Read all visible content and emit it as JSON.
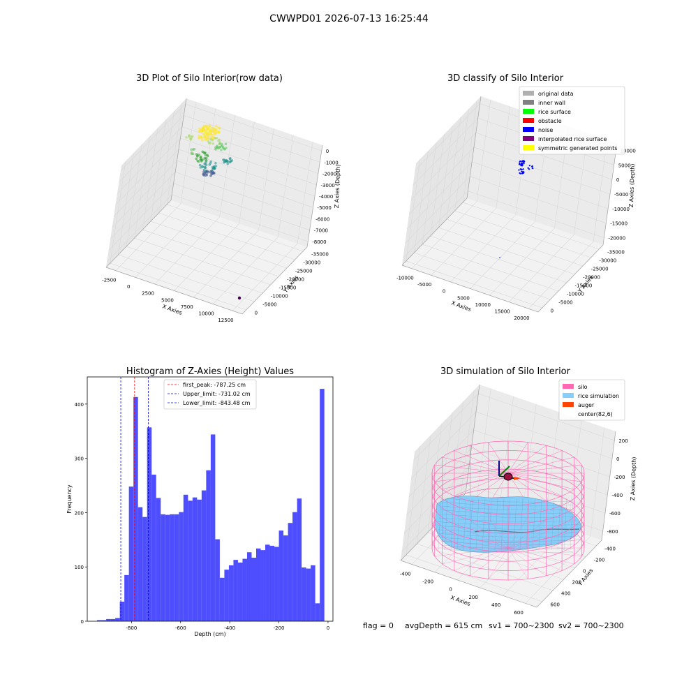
{
  "suptitle": "CWWPD01 2026-07-13 16:25:44",
  "colors": {
    "hist": "#4a4aff",
    "silo": "#ff69b4",
    "rice": "#87cefa",
    "auger": "#ff4500",
    "noise": "#0000ff",
    "pane": "#f2f2f2",
    "grid": "#d8d8d8"
  },
  "chart_data": [
    {
      "type": "scatter",
      "title": "3D Plot of Silo Interior(row data)",
      "xlabel": "X Axies",
      "ylabel": "Y Axies",
      "zlabel": "Z Axies (Depth)",
      "x_ticks": [
        "-2500",
        "0",
        "2500",
        "5000",
        "7500",
        "10000",
        "12500"
      ],
      "y_ticks": [
        "0",
        "-5000",
        "-10000",
        "-15000",
        "-20000",
        "-25000",
        "-30000",
        "-35000"
      ],
      "z_ticks": [
        "0",
        "-1000",
        "-2000",
        "-3000",
        "-4000",
        "-5000",
        "-6000",
        "-7000",
        "-8000"
      ],
      "colormap": "viridis"
    },
    {
      "type": "scatter",
      "title": "3D classify of Silo Interior",
      "xlabel": "X Axies",
      "ylabel": "Y Axies",
      "zlabel": "Z Axies (Depth)",
      "x_ticks": [
        "-10000",
        "-5000",
        "0",
        "5000",
        "10000",
        "15000",
        "20000"
      ],
      "y_ticks": [
        "0",
        "-5000",
        "-10000",
        "-15000",
        "-20000",
        "-25000",
        "-30000",
        "-35000"
      ],
      "z_ticks": [
        "10000",
        "5000",
        "0",
        "-5000",
        "-10000",
        "-15000",
        "-20000"
      ],
      "legend": [
        {
          "label": "original data",
          "color": "#b0b0b0"
        },
        {
          "label": "inner wall",
          "color": "#808080"
        },
        {
          "label": "rice surface",
          "color": "#00ff00"
        },
        {
          "label": "obstacle",
          "color": "#ff0000"
        },
        {
          "label": "noise",
          "color": "#0000ff"
        },
        {
          "label": "interpolated rice surface",
          "color": "#800080"
        },
        {
          "label": "symmetric generated points",
          "color": "#ffff00"
        }
      ],
      "legend_loc": "upper right"
    },
    {
      "type": "bar",
      "title": "Histogram of Z-Axies (Height) Values",
      "xlabel": "Depth (cm)",
      "ylabel": "Frequency",
      "xlim": [
        -980,
        20
      ],
      "ylim": [
        0,
        450
      ],
      "x_ticks": [
        -800,
        -600,
        -400,
        -200,
        0
      ],
      "y_ticks": [
        0,
        100,
        200,
        300,
        400
      ],
      "bin_start": -940,
      "bin_width": 18.5,
      "values": [
        2,
        2,
        4,
        4,
        6,
        36,
        85,
        248,
        413,
        210,
        192,
        357,
        270,
        227,
        197,
        196,
        197,
        197,
        201,
        233,
        222,
        228,
        224,
        241,
        278,
        344,
        151,
        80,
        95,
        103,
        113,
        108,
        115,
        127,
        117,
        134,
        131,
        141,
        139,
        137,
        167,
        158,
        181,
        201,
        226,
        99,
        97,
        103,
        33,
        428
      ],
      "vlines": [
        {
          "label": "first_peak: -787.25 cm",
          "x": -787.25,
          "color": "#ff0000"
        },
        {
          "label": "Upper_limit: -731.02 cm",
          "x": -731.02,
          "color": "#0000cd"
        },
        {
          "label": "Lower_limit: -843.48 cm",
          "x": -843.48,
          "color": "#0000cd"
        }
      ]
    },
    {
      "type": "area",
      "title": "3D simulation of Silo Interior",
      "xlabel": "X Axies",
      "ylabel": "Y Axies",
      "zlabel": "Z Axies (Depth)",
      "x_ticks": [
        "-400",
        "-200",
        "0",
        "200",
        "400",
        "600"
      ],
      "y_ticks": [
        "600",
        "400",
        "200",
        "0",
        "-200",
        "-400"
      ],
      "z_ticks": [
        "200",
        "0",
        "-200",
        "-400",
        "-600",
        "-800"
      ],
      "legend": [
        {
          "label": "silo",
          "color": "#ff69b4"
        },
        {
          "label": "rice simulation",
          "color": "#87cefa"
        },
        {
          "label": "auger",
          "color": "#ff4500"
        },
        {
          "label": "center(82,6)",
          "color": ""
        }
      ]
    }
  ],
  "footer": {
    "flag": "flag = 0",
    "avg": "avgDepth = 615 cm",
    "sv1": "sv1 = 700~2300",
    "sv2": "sv2 = 700~2300"
  }
}
